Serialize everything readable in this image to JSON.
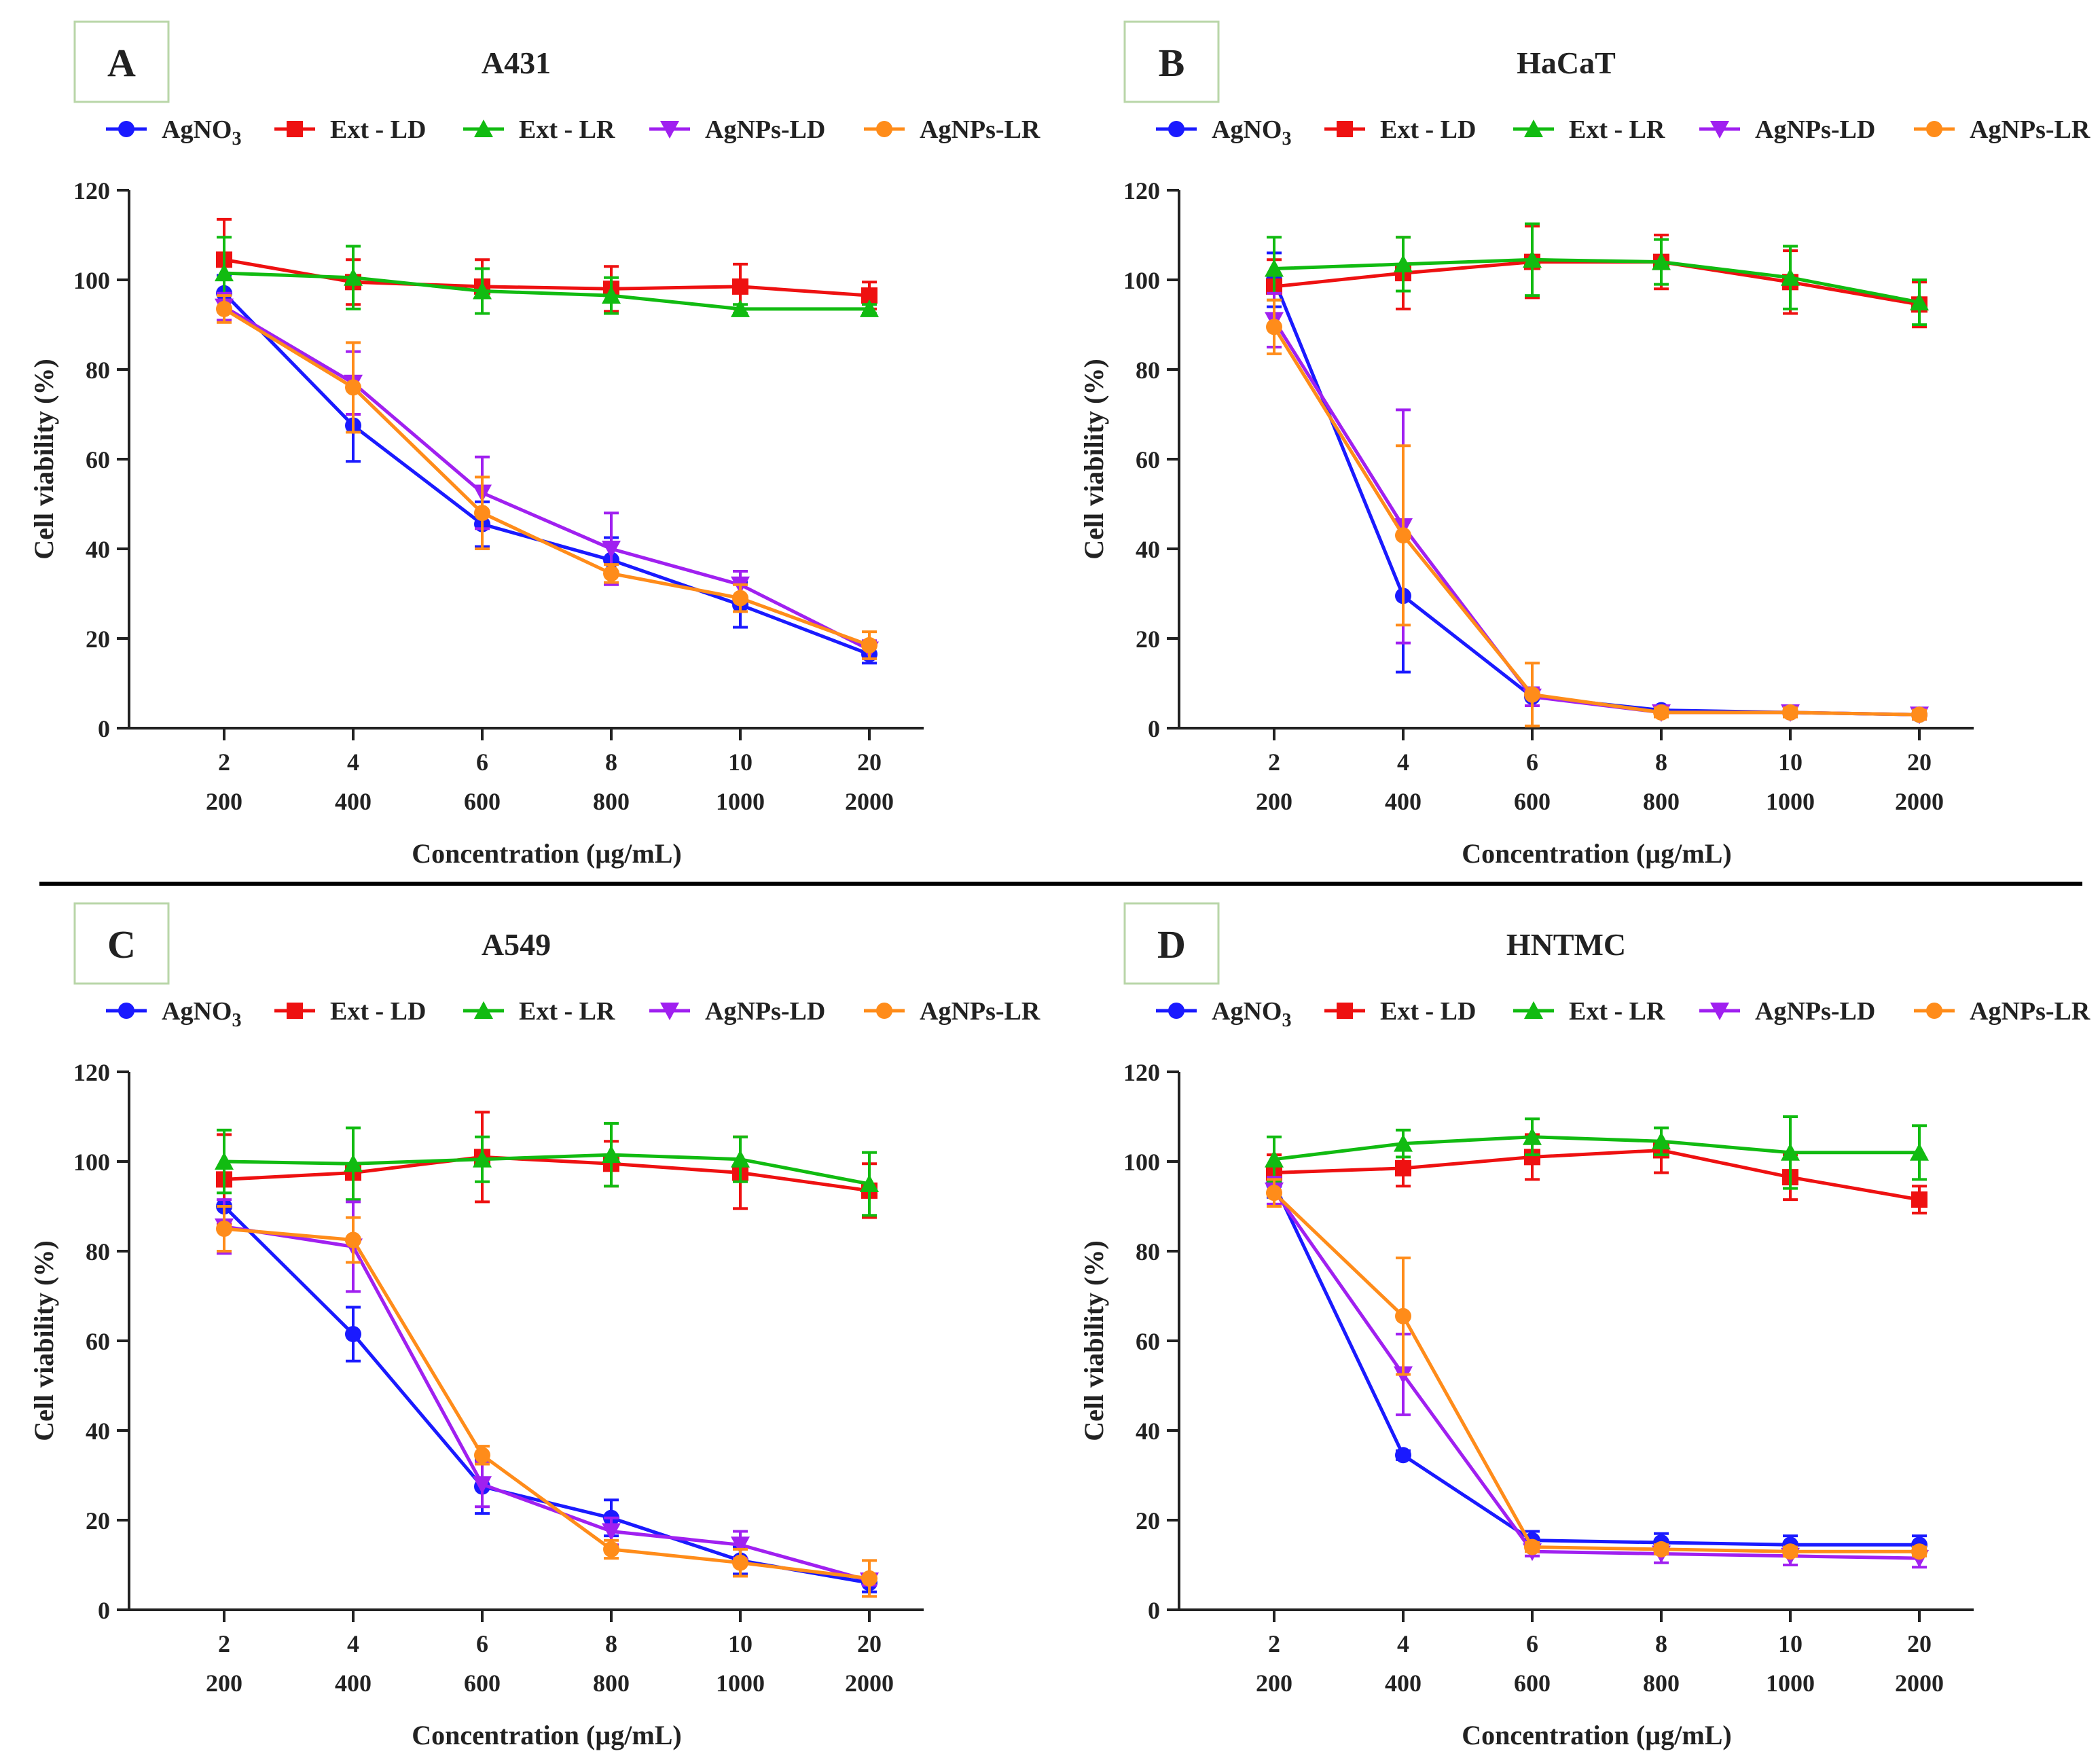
{
  "figure": {
    "panels": [
      "A",
      "B",
      "C",
      "D"
    ]
  },
  "chart_data": [
    {
      "type": "line",
      "panel_label": "A",
      "title": "A431",
      "xlabel": "Concentration (µg/mL)",
      "ylabel": "Cell viability (%)",
      "ylim": [
        0,
        120
      ],
      "yticks": [
        "0",
        "20",
        "40",
        "60",
        "80",
        "100",
        "120"
      ],
      "categories": [
        "2",
        "4",
        "6",
        "8",
        "10",
        "20"
      ],
      "categories_secondary": [
        "200",
        "400",
        "600",
        "800",
        "1000",
        "2000"
      ],
      "legend_position": "top",
      "series": [
        {
          "name": "AgNO3",
          "label_main": "AgNO",
          "label_sub": "3",
          "color": "#1a1aff",
          "marker": "circle",
          "values": [
            97,
            67.5,
            45.5,
            37.5,
            27.5,
            16.5
          ],
          "errors": [
            4,
            8,
            5,
            5,
            5,
            2
          ]
        },
        {
          "name": "Ext - LD",
          "label_main": "Ext - LD",
          "label_sub": "",
          "color": "#ee1111",
          "marker": "square",
          "values": [
            104.5,
            99.5,
            98.5,
            98,
            98.5,
            96.5
          ],
          "errors": [
            9,
            5,
            6,
            5,
            5,
            3
          ]
        },
        {
          "name": "Ext - LR",
          "label_main": "Ext - LR",
          "label_sub": "",
          "color": "#11bb11",
          "marker": "triangle-up",
          "values": [
            101.5,
            100.5,
            97.5,
            96.5,
            93.5,
            93.5
          ],
          "errors": [
            8,
            7,
            5,
            4,
            1,
            1
          ]
        },
        {
          "name": "AgNPs-LD",
          "label_main": "AgNPs-LD",
          "label_sub": "",
          "color": "#a020f0",
          "marker": "triangle-down",
          "values": [
            94,
            77,
            52.5,
            40,
            32,
            17.5
          ],
          "errors": [
            3,
            7,
            8,
            8,
            3,
            2
          ]
        },
        {
          "name": "AgNPs-LR",
          "label_main": "AgNPs-LR",
          "label_sub": "",
          "color": "#ff8c1a",
          "marker": "circle",
          "values": [
            93.5,
            76,
            48,
            34.5,
            29,
            18.5
          ],
          "errors": [
            3,
            10,
            8,
            2,
            3,
            3
          ]
        }
      ]
    },
    {
      "type": "line",
      "panel_label": "B",
      "title": "HaCaT",
      "xlabel": "Concentration (µg/mL)",
      "ylabel": "Cell viability (%)",
      "ylim": [
        0,
        120
      ],
      "yticks": [
        "0",
        "20",
        "40",
        "60",
        "80",
        "100",
        "120"
      ],
      "categories": [
        "2",
        "4",
        "6",
        "8",
        "10",
        "20"
      ],
      "categories_secondary": [
        "200",
        "400",
        "600",
        "800",
        "1000",
        "2000"
      ],
      "legend_position": "top",
      "series": [
        {
          "name": "AgNO3",
          "label_main": "AgNO",
          "label_sub": "3",
          "color": "#1a1aff",
          "marker": "circle",
          "values": [
            100,
            29.5,
            7,
            4,
            3.5,
            3
          ],
          "errors": [
            6,
            17,
            2,
            1,
            1,
            1
          ]
        },
        {
          "name": "Ext - LD",
          "label_main": "Ext - LD",
          "label_sub": "",
          "color": "#ee1111",
          "marker": "square",
          "values": [
            98.5,
            101.5,
            104,
            104,
            99.5,
            94.5
          ],
          "errors": [
            6,
            8,
            8,
            6,
            7,
            5
          ]
        },
        {
          "name": "Ext - LR",
          "label_main": "Ext - LR",
          "label_sub": "",
          "color": "#11bb11",
          "marker": "triangle-up",
          "values": [
            102.5,
            103.5,
            104.5,
            104,
            100.5,
            95
          ],
          "errors": [
            7,
            6,
            8,
            5,
            7,
            5
          ]
        },
        {
          "name": "AgNPs-LD",
          "label_main": "AgNPs-LD",
          "label_sub": "",
          "color": "#a020f0",
          "marker": "triangle-down",
          "values": [
            91,
            45,
            7,
            3.5,
            3.5,
            3
          ],
          "errors": [
            6,
            26,
            2,
            1,
            1,
            1
          ]
        },
        {
          "name": "AgNPs-LR",
          "label_main": "AgNPs-LR",
          "label_sub": "",
          "color": "#ff8c1a",
          "marker": "circle",
          "values": [
            89.5,
            43,
            7.5,
            3.5,
            3.5,
            3
          ],
          "errors": [
            6,
            20,
            7,
            1,
            1,
            1
          ]
        }
      ]
    },
    {
      "type": "line",
      "panel_label": "C",
      "title": "A549",
      "xlabel": "Concentration (µg/mL)",
      "ylabel": "Cell viability (%)",
      "ylim": [
        0,
        120
      ],
      "yticks": [
        "0",
        "20",
        "40",
        "60",
        "80",
        "100",
        "120"
      ],
      "categories": [
        "2",
        "4",
        "6",
        "8",
        "10",
        "20"
      ],
      "categories_secondary": [
        "200",
        "400",
        "600",
        "800",
        "1000",
        "2000"
      ],
      "legend_position": "top",
      "series": [
        {
          "name": "AgNO3",
          "label_main": "AgNO",
          "label_sub": "3",
          "color": "#1a1aff",
          "marker": "circle",
          "values": [
            90,
            61.5,
            27.5,
            20.5,
            11,
            6
          ],
          "errors": [
            5,
            6,
            6,
            4,
            3,
            2
          ]
        },
        {
          "name": "Ext - LD",
          "label_main": "Ext - LD",
          "label_sub": "",
          "color": "#ee1111",
          "marker": "square",
          "values": [
            96,
            97.5,
            101,
            99.5,
            97.5,
            93.5
          ],
          "errors": [
            10,
            10,
            10,
            5,
            8,
            6
          ]
        },
        {
          "name": "Ext - LR",
          "label_main": "Ext - LR",
          "label_sub": "",
          "color": "#11bb11",
          "marker": "triangle-up",
          "values": [
            100,
            99.5,
            100.5,
            101.5,
            100.5,
            95
          ],
          "errors": [
            7,
            8,
            5,
            7,
            5,
            7
          ]
        },
        {
          "name": "AgNPs-LD",
          "label_main": "AgNPs-LD",
          "label_sub": "",
          "color": "#a020f0",
          "marker": "triangle-down",
          "values": [
            85.5,
            81,
            28,
            17.5,
            14.5,
            6.5
          ],
          "errors": [
            6,
            10,
            5,
            3,
            3,
            1
          ]
        },
        {
          "name": "AgNPs-LR",
          "label_main": "AgNPs-LR",
          "label_sub": "",
          "color": "#ff8c1a",
          "marker": "circle",
          "values": [
            85,
            82.5,
            34.5,
            13.5,
            10.5,
            7
          ],
          "errors": [
            5,
            5,
            2,
            2,
            3,
            4
          ]
        }
      ]
    },
    {
      "type": "line",
      "panel_label": "D",
      "title": "HNTMC",
      "xlabel": "Concentration (µg/mL)",
      "ylabel": "Cell viability (%)",
      "ylim": [
        0,
        120
      ],
      "yticks": [
        "0",
        "20",
        "40",
        "60",
        "80",
        "100",
        "120"
      ],
      "categories": [
        "2",
        "4",
        "6",
        "8",
        "10",
        "20"
      ],
      "categories_secondary": [
        "200",
        "400",
        "600",
        "800",
        "1000",
        "2000"
      ],
      "legend_position": "top",
      "series": [
        {
          "name": "AgNO3",
          "label_main": "AgNO",
          "label_sub": "3",
          "color": "#1a1aff",
          "marker": "circle",
          "values": [
            95,
            34.5,
            15.5,
            15,
            14.5,
            14.5
          ],
          "errors": [
            3,
            1,
            2,
            2,
            2,
            2
          ]
        },
        {
          "name": "Ext - LD",
          "label_main": "Ext - LD",
          "label_sub": "",
          "color": "#ee1111",
          "marker": "square",
          "values": [
            97.5,
            98.5,
            101,
            102.5,
            96.5,
            91.5
          ],
          "errors": [
            4,
            4,
            5,
            5,
            5,
            3
          ]
        },
        {
          "name": "Ext - LR",
          "label_main": "Ext - LR",
          "label_sub": "",
          "color": "#11bb11",
          "marker": "triangle-up",
          "values": [
            100.5,
            104,
            105.5,
            104.5,
            102,
            102
          ],
          "errors": [
            5,
            3,
            4,
            3,
            8,
            6
          ]
        },
        {
          "name": "AgNPs-LD",
          "label_main": "AgNPs-LD",
          "label_sub": "",
          "color": "#a020f0",
          "marker": "triangle-down",
          "values": [
            93.5,
            52.5,
            13,
            12.5,
            12,
            11.5
          ],
          "errors": [
            3,
            9,
            1,
            2,
            2,
            2
          ]
        },
        {
          "name": "AgNPs-LR",
          "label_main": "AgNPs-LR",
          "label_sub": "",
          "color": "#ff8c1a",
          "marker": "circle",
          "values": [
            93,
            65.5,
            14,
            13.5,
            13,
            13
          ],
          "errors": [
            3,
            13,
            1,
            1,
            1,
            1
          ]
        }
      ]
    }
  ]
}
